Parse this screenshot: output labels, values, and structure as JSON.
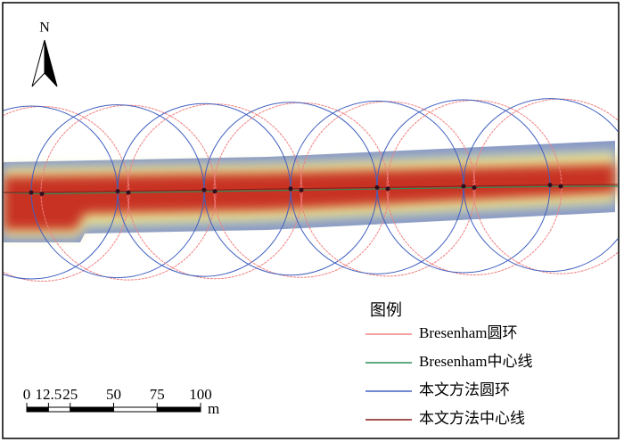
{
  "north_arrow": {
    "label": "N"
  },
  "legend": {
    "title": "图例",
    "items": [
      {
        "label": "Bresenham圆环",
        "color": "#f08080"
      },
      {
        "label": "Bresenham中心线",
        "color": "#2e8b57"
      },
      {
        "label": "本文方法圆环",
        "color": "#4060c0"
      },
      {
        "label": "本文方法中心线",
        "color": "#8b1a1a"
      }
    ]
  },
  "scale_bar": {
    "ticks": [
      0,
      12.5,
      25,
      50,
      75,
      100
    ],
    "unit": "m"
  }
}
